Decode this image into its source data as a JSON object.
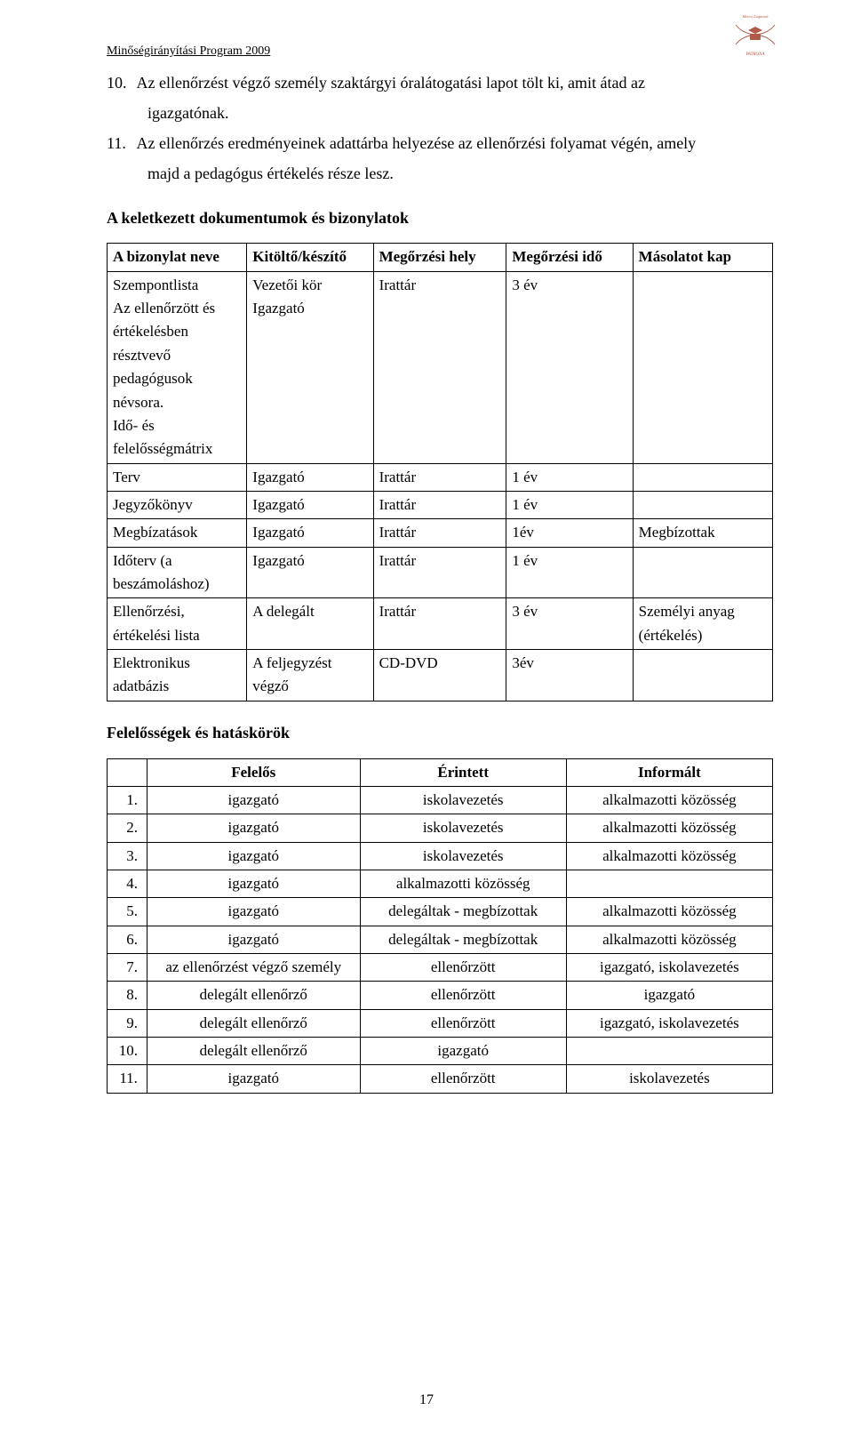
{
  "header": {
    "left": "Minőségirányítási Program 2009",
    "logo_text_top": "Móricz Zsigmond Általános Iskola",
    "logo_text_bottom": "PATRONA"
  },
  "list": {
    "item10_num": "10.",
    "item10_line1": "Az ellenőrzést végző személy szaktárgyi óralátogatási lapot tölt ki, amit átad az",
    "item10_line2": "igazgatónak.",
    "item11_num": "11.",
    "item11_line1": "Az ellenőrzés eredményeinek adattárba helyezése az ellenőrzési folyamat végén, amely",
    "item11_line2": "majd a pedagógus értékelés része lesz."
  },
  "section1_title": "A keletkezett dokumentumok és bizonylatok",
  "t1": {
    "headers": [
      "A bizonylat neve",
      "Kitöltő/készítő",
      "Megőrzési hely",
      "Megőrzési idő",
      "Másolatot kap"
    ],
    "rows": [
      [
        "Szempontlista\nAz ellenőrzött és értékelésben résztvevő pedagógusok névsora.\nIdő- és felelősségmátrix",
        "Vezetői kör\nIgazgató",
        "Irattár",
        "3 év",
        ""
      ],
      [
        "Terv",
        "Igazgató",
        "Irattár",
        "1 év",
        ""
      ],
      [
        "Jegyzőkönyv",
        "Igazgató",
        "Irattár",
        "1 év",
        ""
      ],
      [
        "Megbízatások",
        "Igazgató",
        "Irattár",
        "1év",
        "Megbízottak"
      ],
      [
        "Időterv (a beszámoláshoz)",
        "Igazgató",
        "Irattár",
        "1 év",
        ""
      ],
      [
        "Ellenőrzési, értékelési lista",
        "A delegált",
        "Irattár",
        "3 év",
        "Személyi anyag (értékelés)"
      ],
      [
        "Elektronikus adatbázis",
        "A feljegyzést végző",
        "CD-DVD",
        " 3év",
        ""
      ]
    ]
  },
  "section2_title": "Felelősségek és hatáskörök",
  "t2": {
    "headers": [
      "",
      "Felelős",
      "Érintett",
      "Informált"
    ],
    "rows": [
      [
        "1.",
        "igazgató",
        "iskolavezetés",
        "alkalmazotti közösség"
      ],
      [
        "2.",
        "igazgató",
        "iskolavezetés",
        "alkalmazotti közösség"
      ],
      [
        "3.",
        "igazgató",
        "iskolavezetés",
        "alkalmazotti közösség"
      ],
      [
        "4.",
        "igazgató",
        "alkalmazotti közösség",
        ""
      ],
      [
        "5.",
        "igazgató",
        "delegáltak - megbízottak",
        "alkalmazotti közösség"
      ],
      [
        "6.",
        "igazgató",
        "delegáltak - megbízottak",
        "alkalmazotti közösség"
      ],
      [
        "7.",
        "az ellenőrzést végző személy",
        "ellenőrzött",
        "igazgató, iskolavezetés"
      ],
      [
        "8.",
        "delegált ellenőrző",
        "ellenőrzött",
        "igazgató"
      ],
      [
        "9.",
        "delegált ellenőrző",
        "ellenőrzött",
        "igazgató, iskolavezetés"
      ],
      [
        "10.",
        "delegált ellenőrző",
        "igazgató",
        ""
      ],
      [
        "11.",
        "igazgató",
        "ellenőrzött",
        "iskolavezetés"
      ]
    ]
  },
  "page_number": "17",
  "colors": {
    "text": "#000000",
    "border": "#000000",
    "bg": "#ffffff",
    "logo_stroke": "#b05a4a"
  }
}
